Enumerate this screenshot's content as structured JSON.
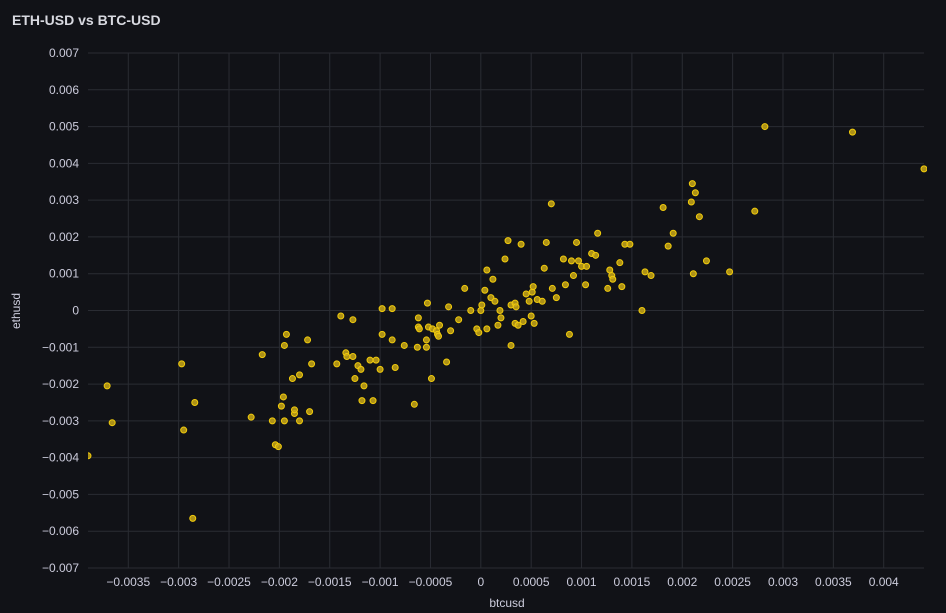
{
  "panel": {
    "title": "ETH-USD vs BTC-USD"
  },
  "chart_data": {
    "type": "scatter",
    "title": "ETH-USD vs BTC-USD",
    "xlabel": "btcusd",
    "ylabel": "ethusd",
    "xlim": [
      -0.0039,
      0.0044
    ],
    "ylim": [
      -0.007,
      0.007
    ],
    "xticks": [
      -0.0035,
      -0.003,
      -0.0025,
      -0.002,
      -0.0015,
      -0.001,
      -0.0005,
      0,
      0.0005,
      0.001,
      0.0015,
      0.002,
      0.0025,
      0.003,
      0.0035,
      0.004
    ],
    "xtick_labels": [
      "−0.0035",
      "−0.003",
      "−0.0025",
      "−0.002",
      "−0.0015",
      "−0.001",
      "−0.0005",
      "0",
      "0.0005",
      "0.001",
      "0.0015",
      "0.002",
      "0.0025",
      "0.003",
      "0.0035",
      "0.004"
    ],
    "yticks": [
      0.007,
      0.006,
      0.005,
      0.004,
      0.003,
      0.002,
      0.001,
      0,
      -0.001,
      -0.002,
      -0.003,
      -0.004,
      -0.005,
      -0.006,
      -0.007
    ],
    "ytick_labels": [
      "0.007",
      "0.006",
      "0.005",
      "0.004",
      "0.003",
      "0.002",
      "0.001",
      "0",
      "−0.001",
      "−0.002",
      "−0.003",
      "−0.004",
      "−0.005",
      "−0.006",
      "−0.007"
    ],
    "grid": true,
    "colors": {
      "point_fill": "#c9a816",
      "point_stroke": "#f2cc0c",
      "grid": "#2a2c33",
      "background": "#111217",
      "text": "#ccccdc"
    },
    "points": [
      [
        -0.0039,
        -0.00395
      ],
      [
        -0.00366,
        -0.00305
      ],
      [
        -0.00371,
        -0.00205
      ],
      [
        -0.00297,
        -0.00145
      ],
      [
        -0.00295,
        -0.00325
      ],
      [
        -0.00286,
        -0.00565
      ],
      [
        -0.00284,
        -0.0025
      ],
      [
        -0.00228,
        -0.0029
      ],
      [
        -0.00217,
        -0.0012
      ],
      [
        -0.00207,
        -0.003
      ],
      [
        -0.00204,
        -0.00365
      ],
      [
        -0.00201,
        -0.0037
      ],
      [
        -0.00198,
        -0.0026
      ],
      [
        -0.00196,
        -0.00235
      ],
      [
        -0.00195,
        -0.00095
      ],
      [
        -0.00193,
        -0.00065
      ],
      [
        -0.00195,
        -0.003
      ],
      [
        -0.00187,
        -0.00185
      ],
      [
        -0.00185,
        -0.0028
      ],
      [
        -0.00185,
        -0.0027
      ],
      [
        -0.0018,
        -0.00175
      ],
      [
        -0.0018,
        -0.003
      ],
      [
        -0.00172,
        -0.0008
      ],
      [
        -0.0017,
        -0.00275
      ],
      [
        -0.00168,
        -0.00145
      ],
      [
        -0.00143,
        -0.00145
      ],
      [
        -0.00139,
        -0.00015
      ],
      [
        -0.00134,
        -0.00115
      ],
      [
        -0.00133,
        -0.00125
      ],
      [
        -0.00127,
        -0.00025
      ],
      [
        -0.00127,
        -0.00125
      ],
      [
        -0.00125,
        -0.00185
      ],
      [
        -0.00122,
        -0.0015
      ],
      [
        -0.00119,
        -0.0016
      ],
      [
        -0.00118,
        -0.00245
      ],
      [
        -0.00116,
        -0.00205
      ],
      [
        -0.0011,
        -0.00135
      ],
      [
        -0.00107,
        -0.00245
      ],
      [
        -0.00104,
        -0.00135
      ],
      [
        -0.001,
        -0.0016
      ],
      [
        -0.00098,
        -0.00065
      ],
      [
        -0.00098,
        5e-05
      ],
      [
        -0.00088,
        5e-05
      ],
      [
        -0.00088,
        -0.0008
      ],
      [
        -0.00085,
        -0.00155
      ],
      [
        -0.00076,
        -0.00095
      ],
      [
        -0.00066,
        -0.00255
      ],
      [
        -0.00063,
        -0.001
      ],
      [
        -0.00062,
        -0.0002
      ],
      [
        -0.00062,
        -0.00045
      ],
      [
        -0.00061,
        -0.0005
      ],
      [
        -0.00054,
        -0.0008
      ],
      [
        -0.00054,
        -0.001
      ],
      [
        -0.00053,
        0.0002
      ],
      [
        -0.00052,
        -0.00045
      ],
      [
        -0.00049,
        -0.00185
      ],
      [
        -0.00048,
        -0.0005
      ],
      [
        -0.00044,
        -0.00055
      ],
      [
        -0.00043,
        -0.00065
      ],
      [
        -0.00042,
        -0.0007
      ],
      [
        -0.00041,
        -0.0004
      ],
      [
        -0.00034,
        -0.0014
      ],
      [
        -0.00032,
        0.0001
      ],
      [
        -0.0003,
        -0.00055
      ],
      [
        -0.00022,
        -0.00025
      ],
      [
        -0.00016,
        0.0006
      ],
      [
        -0.0001,
        0.0
      ],
      [
        -4e-05,
        -0.0005
      ],
      [
        -2e-05,
        -0.0006
      ],
      [
        0.0,
        0.0
      ],
      [
        1e-05,
        0.00015
      ],
      [
        4e-05,
        0.00055
      ],
      [
        6e-05,
        -0.0005
      ],
      [
        6e-05,
        0.0011
      ],
      [
        0.0001,
        0.00035
      ],
      [
        0.00012,
        0.00085
      ],
      [
        0.00014,
        0.00025
      ],
      [
        0.00017,
        -0.0004
      ],
      [
        0.00019,
        0.0
      ],
      [
        0.0002,
        -0.0002
      ],
      [
        0.00024,
        0.0014
      ],
      [
        0.00027,
        0.0019
      ],
      [
        0.0003,
        0.00015
      ],
      [
        0.0003,
        -0.00095
      ],
      [
        0.00034,
        0.0002
      ],
      [
        0.00034,
        -0.00035
      ],
      [
        0.00035,
        0.0001
      ],
      [
        0.00037,
        -0.0004
      ],
      [
        0.0004,
        0.0018
      ],
      [
        0.00042,
        -0.0003
      ],
      [
        0.00045,
        0.00045
      ],
      [
        0.00048,
        0.00025
      ],
      [
        0.0005,
        -0.00015
      ],
      [
        0.00051,
        0.0005
      ],
      [
        0.00052,
        0.00065
      ],
      [
        0.00053,
        -0.00035
      ],
      [
        0.00056,
        0.0003
      ],
      [
        0.00061,
        0.00025
      ],
      [
        0.00063,
        0.00115
      ],
      [
        0.00065,
        0.00185
      ],
      [
        0.0007,
        0.0029
      ],
      [
        0.00071,
        0.0006
      ],
      [
        0.00075,
        0.00035
      ],
      [
        0.00082,
        0.0014
      ],
      [
        0.00084,
        0.0007
      ],
      [
        0.00088,
        -0.00065
      ],
      [
        0.0009,
        0.00135
      ],
      [
        0.00092,
        0.00095
      ],
      [
        0.00095,
        0.00185
      ],
      [
        0.00097,
        0.00135
      ],
      [
        0.001,
        0.0012
      ],
      [
        0.00104,
        0.0007
      ],
      [
        0.00105,
        0.0012
      ],
      [
        0.0011,
        0.00155
      ],
      [
        0.00114,
        0.0015
      ],
      [
        0.00116,
        0.0021
      ],
      [
        0.00126,
        0.0006
      ],
      [
        0.00128,
        0.0011
      ],
      [
        0.0013,
        0.00095
      ],
      [
        0.00131,
        0.00085
      ],
      [
        0.00138,
        0.0013
      ],
      [
        0.0014,
        0.00065
      ],
      [
        0.00143,
        0.0018
      ],
      [
        0.00148,
        0.0018
      ],
      [
        0.0016,
        0.0
      ],
      [
        0.00163,
        0.00105
      ],
      [
        0.00169,
        0.00095
      ],
      [
        0.00181,
        0.0028
      ],
      [
        0.00186,
        0.00175
      ],
      [
        0.00191,
        0.0021
      ],
      [
        0.0021,
        0.00345
      ],
      [
        0.00209,
        0.00295
      ],
      [
        0.00213,
        0.0032
      ],
      [
        0.00211,
        0.001
      ],
      [
        0.00217,
        0.00255
      ],
      [
        0.00224,
        0.00135
      ],
      [
        0.00247,
        0.00105
      ],
      [
        0.00272,
        0.0027
      ],
      [
        0.00282,
        0.005
      ],
      [
        0.00369,
        0.00485
      ],
      [
        0.0044,
        0.00385
      ]
    ]
  }
}
